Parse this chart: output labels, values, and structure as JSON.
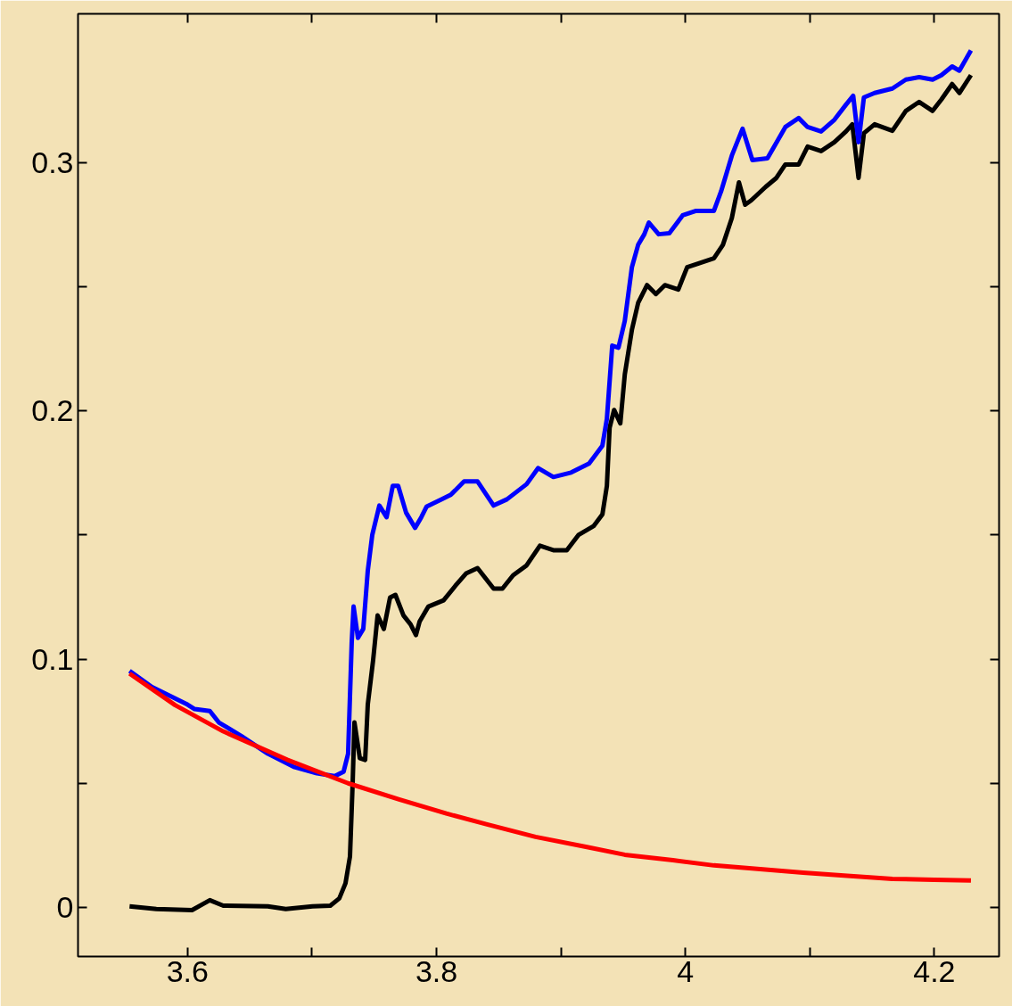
{
  "chart_data": {
    "type": "line",
    "xlim": [
      3.512,
      4.252
    ],
    "ylim": [
      -0.0198,
      0.36
    ],
    "xticks": [
      3.6,
      {
        "value": 3.7,
        "label": null
      },
      3.8,
      {
        "value": 3.9,
        "label": null
      },
      4,
      {
        "value": 4.1,
        "label": null
      },
      4.2
    ],
    "yticks": [
      0,
      {
        "value": 0.05,
        "label": null
      },
      0.1,
      {
        "value": 0.15,
        "label": null
      },
      0.2,
      {
        "value": 0.25,
        "label": null
      },
      0.3
    ],
    "grid": false,
    "line_style": "solid",
    "series": [
      {
        "color": "#000000",
        "x": [
          3.5534,
          3.5749,
          3.6036,
          3.6179,
          3.6287,
          3.6645,
          3.6789,
          3.7004,
          3.7147,
          3.7219,
          3.7269,
          3.7305,
          3.7326,
          3.7341,
          3.7384,
          3.7427,
          3.7448,
          3.7491,
          3.7527,
          3.7577,
          3.7627,
          3.767,
          3.7735,
          3.7792,
          3.7835,
          3.7864,
          3.7935,
          3.8057,
          3.8151,
          3.8237,
          3.833,
          3.8459,
          3.853,
          3.8616,
          3.8724,
          3.8831,
          3.8939,
          3.9047,
          3.914,
          3.9262,
          3.9333,
          3.9369,
          3.9391,
          3.9427,
          3.9477,
          3.9513,
          3.957,
          3.962,
          3.9692,
          3.9763,
          3.9835,
          3.9943,
          4.0014,
          4.0122,
          4.0229,
          4.0301,
          4.0373,
          4.043,
          4.048,
          4.053,
          4.0645,
          4.0731,
          4.0803,
          4.091,
          4.0982,
          4.109,
          4.1197,
          4.129,
          4.1341,
          4.1391,
          4.1434,
          4.152,
          4.1663,
          4.1771,
          4.1878,
          4.1986,
          4.2057,
          4.2143,
          4.2201,
          4.2294
        ],
        "values": [
          0.0004,
          -0.0007,
          -0.0011,
          0.0029,
          0.0007,
          0.0004,
          -0.0007,
          0.0004,
          0.0007,
          0.0036,
          0.0097,
          0.0205,
          0.0493,
          0.0745,
          0.0601,
          0.0594,
          0.0817,
          0.0996,
          0.1176,
          0.1122,
          0.1248,
          0.1259,
          0.1176,
          0.114,
          0.1097,
          0.1151,
          0.1212,
          0.1237,
          0.1295,
          0.1345,
          0.1367,
          0.1284,
          0.1284,
          0.1338,
          0.1378,
          0.1457,
          0.1439,
          0.1439,
          0.15,
          0.1536,
          0.1583,
          0.1698,
          0.1932,
          0.2004,
          0.195,
          0.2147,
          0.2327,
          0.2435,
          0.2507,
          0.2471,
          0.2507,
          0.2489,
          0.2579,
          0.2597,
          0.2615,
          0.2669,
          0.2777,
          0.2921,
          0.2831,
          0.2849,
          0.2903,
          0.2939,
          0.2993,
          0.2993,
          0.3065,
          0.3047,
          0.3083,
          0.3126,
          0.3155,
          0.2939,
          0.3119,
          0.3155,
          0.3129,
          0.3209,
          0.3245,
          0.3209,
          0.3255,
          0.3317,
          0.3281,
          0.3353
        ]
      },
      {
        "color": "#0000ff",
        "x": [
          3.5534,
          3.5713,
          3.6,
          3.6057,
          3.6179,
          3.6251,
          3.643,
          3.6645,
          3.686,
          3.7039,
          3.7183,
          3.7254,
          3.729,
          3.7319,
          3.7334,
          3.7369,
          3.7412,
          3.7448,
          3.7484,
          3.7541,
          3.7599,
          3.7649,
          3.7692,
          3.7756,
          3.7828,
          3.7878,
          3.7921,
          3.8043,
          3.8115,
          3.8222,
          3.833,
          3.8459,
          3.8566,
          3.8724,
          3.8817,
          3.8939,
          3.9082,
          3.9226,
          3.9333,
          3.9369,
          3.9412,
          3.9462,
          3.9513,
          3.957,
          3.962,
          3.967,
          3.9706,
          3.9785,
          3.9871,
          3.9978,
          4.0086,
          4.0229,
          4.0287,
          4.0373,
          4.0459,
          4.0538,
          4.0659,
          4.0803,
          4.091,
          4.0982,
          4.109,
          4.1197,
          4.129,
          4.1348,
          4.1391,
          4.1434,
          4.152,
          4.1663,
          4.1771,
          4.1878,
          4.1986,
          4.2057,
          4.2143,
          4.2201,
          4.2294
        ],
        "values": [
          0.0953,
          0.0888,
          0.0817,
          0.0799,
          0.0791,
          0.0745,
          0.0691,
          0.0619,
          0.0565,
          0.054,
          0.0529,
          0.0547,
          0.0619,
          0.1068,
          0.1212,
          0.1086,
          0.1122,
          0.1356,
          0.15,
          0.1619,
          0.1572,
          0.1698,
          0.1698,
          0.159,
          0.1529,
          0.1572,
          0.1615,
          0.1644,
          0.1662,
          0.1716,
          0.1716,
          0.1619,
          0.1644,
          0.1705,
          0.177,
          0.1734,
          0.1752,
          0.1788,
          0.186,
          0.1968,
          0.2263,
          0.2255,
          0.2363,
          0.2579,
          0.2669,
          0.2712,
          0.2759,
          0.2712,
          0.2716,
          0.2788,
          0.2806,
          0.2806,
          0.2885,
          0.3029,
          0.3137,
          0.3011,
          0.3018,
          0.3144,
          0.318,
          0.3144,
          0.3126,
          0.3173,
          0.3234,
          0.327,
          0.3083,
          0.3263,
          0.3281,
          0.3299,
          0.3335,
          0.3345,
          0.3335,
          0.3353,
          0.3388,
          0.3371,
          0.3453
        ]
      },
      {
        "color": "#ff0000",
        "x": [
          3.5534,
          3.59,
          3.6287,
          3.68,
          3.729,
          3.77,
          3.8079,
          3.84,
          3.8796,
          3.92,
          3.9513,
          3.99,
          4.0229,
          4.06,
          4.0946,
          4.13,
          4.1663,
          4.2,
          4.2294
        ],
        "values": [
          0.0942,
          0.0815,
          0.0709,
          0.0595,
          0.05,
          0.0435,
          0.0378,
          0.0335,
          0.0284,
          0.0244,
          0.0212,
          0.019,
          0.0169,
          0.0154,
          0.014,
          0.0127,
          0.0115,
          0.0111,
          0.0108
        ]
      }
    ]
  }
}
